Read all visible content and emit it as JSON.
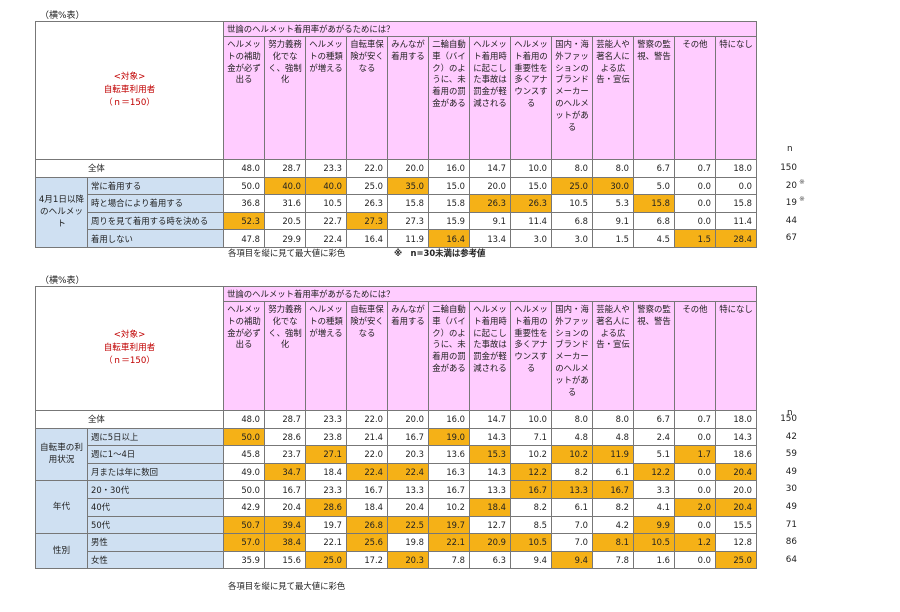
{
  "table1": {
    "unit": "（横%表）",
    "subject_label": "<対象>",
    "subject_name": "自転車利用者",
    "subject_n": "（ｎ＝150）",
    "question": "世論のヘルメット着用率があがるためには？",
    "columns": [
      "ヘルメットの補助金が必ず出る",
      "努力義務化でなく、強制化",
      "ヘルメットの種類が増える",
      "自転車保険が安くなる",
      "みんなが着用する",
      "二輪自動車（バイク）のように、未着用の罰金がある",
      "ヘルメット着用時に起こした事故は罰金が軽減される",
      "ヘルメット着用の重要性を多くアナウンスする",
      "国内・海外ファッションのブランドメーカーのヘルメットがある",
      "芸能人や著名人による広告・宣伝",
      "警察の監視、警告",
      "その他",
      "特になし"
    ],
    "n_header": "n",
    "total": {
      "label": "全体",
      "values": [
        "48.0",
        "28.7",
        "23.3",
        "22.0",
        "20.0",
        "16.0",
        "14.7",
        "10.0",
        "8.0",
        "8.0",
        "6.7",
        "0.7",
        "18.0"
      ],
      "n": "150"
    },
    "group": {
      "label": "4月1日以降のヘルメット",
      "rows": [
        {
          "label": "常に着用する",
          "values": [
            "50.0",
            "40.0",
            "40.0",
            "25.0",
            "35.0",
            "15.0",
            "20.0",
            "15.0",
            "25.0",
            "30.0",
            "5.0",
            "0.0",
            "0.0"
          ],
          "hl": [
            1,
            2,
            4,
            8,
            9
          ],
          "n": "20",
          "mark": "※"
        },
        {
          "label": "時と場合により着用する",
          "values": [
            "36.8",
            "31.6",
            "10.5",
            "26.3",
            "15.8",
            "15.8",
            "26.3",
            "26.3",
            "10.5",
            "5.3",
            "15.8",
            "0.0",
            "15.8"
          ],
          "hl": [
            6,
            7,
            10
          ],
          "n": "19",
          "mark": "※"
        },
        {
          "label": "周りを見て着用する時を決める",
          "values": [
            "52.3",
            "20.5",
            "22.7",
            "27.3",
            "27.3",
            "15.9",
            "9.1",
            "11.4",
            "6.8",
            "9.1",
            "6.8",
            "0.0",
            "11.4"
          ],
          "hl": [
            0,
            3
          ],
          "n": "44",
          "mark": ""
        },
        {
          "label": "着用しない",
          "values": [
            "47.8",
            "29.9",
            "22.4",
            "16.4",
            "11.9",
            "16.4",
            "13.4",
            "3.0",
            "3.0",
            "1.5",
            "4.5",
            "1.5",
            "28.4"
          ],
          "hl": [
            5,
            11,
            12
          ],
          "n": "67",
          "mark": ""
        }
      ]
    },
    "note1": "各項目を縦に見て最大値に彩色",
    "note2": "※　n=30未満は参考値"
  },
  "table2": {
    "unit": "（横%表）",
    "subject_label": "<対象>",
    "subject_name": "自転車利用者",
    "subject_n": "（ｎ＝150）",
    "question": "世論のヘルメット着用率があがるためには？",
    "columns": [
      "ヘルメットの補助金が必ず出る",
      "努力義務化でなく、強制化",
      "ヘルメットの種類が増える",
      "自転車保険が安くなる",
      "みんなが着用する",
      "二輪自動車（バイク）のように、未着用の罰金がある",
      "ヘルメット着用時に起こした事故は罰金が軽減される",
      "ヘルメット着用の重要性を多くアナウンスする",
      "国内・海外ファッションのブランドメーカーのヘルメットがある",
      "芸能人や著名人による広告・宣伝",
      "警察の監視、警告",
      "その他",
      "特になし"
    ],
    "n_header": "n",
    "total": {
      "label": "全体",
      "values": [
        "48.0",
        "28.7",
        "23.3",
        "22.0",
        "20.0",
        "16.0",
        "14.7",
        "10.0",
        "8.0",
        "8.0",
        "6.7",
        "0.7",
        "18.0"
      ],
      "n": "150"
    },
    "groups": [
      {
        "label": "自転車の利用状況",
        "rows": [
          {
            "label": "週に5日以上",
            "values": [
              "50.0",
              "28.6",
              "23.8",
              "21.4",
              "16.7",
              "19.0",
              "14.3",
              "7.1",
              "4.8",
              "4.8",
              "2.4",
              "0.0",
              "14.3"
            ],
            "hl": [
              0,
              5
            ],
            "n": "42"
          },
          {
            "label": "週に1～4日",
            "values": [
              "45.8",
              "23.7",
              "27.1",
              "22.0",
              "20.3",
              "13.6",
              "15.3",
              "10.2",
              "10.2",
              "11.9",
              "5.1",
              "1.7",
              "18.6"
            ],
            "hl": [
              2,
              6,
              8,
              9,
              11
            ],
            "n": "59"
          },
          {
            "label": "月または年に数回",
            "values": [
              "49.0",
              "34.7",
              "18.4",
              "22.4",
              "22.4",
              "16.3",
              "14.3",
              "12.2",
              "8.2",
              "6.1",
              "12.2",
              "0.0",
              "20.4"
            ],
            "hl": [
              1,
              3,
              4,
              7,
              10,
              12
            ],
            "n": "49"
          }
        ]
      },
      {
        "label": "年代",
        "rows": [
          {
            "label": "20・30代",
            "values": [
              "50.0",
              "16.7",
              "23.3",
              "16.7",
              "13.3",
              "16.7",
              "13.3",
              "16.7",
              "13.3",
              "16.7",
              "3.3",
              "0.0",
              "20.0"
            ],
            "hl": [
              7,
              8,
              9
            ],
            "n": "30"
          },
          {
            "label": "40代",
            "values": [
              "42.9",
              "20.4",
              "28.6",
              "18.4",
              "20.4",
              "10.2",
              "18.4",
              "8.2",
              "6.1",
              "8.2",
              "4.1",
              "2.0",
              "20.4"
            ],
            "hl": [
              2,
              6,
              11,
              12
            ],
            "n": "49"
          },
          {
            "label": "50代",
            "values": [
              "50.7",
              "39.4",
              "19.7",
              "26.8",
              "22.5",
              "19.7",
              "12.7",
              "8.5",
              "7.0",
              "4.2",
              "9.9",
              "0.0",
              "15.5"
            ],
            "hl": [
              0,
              1,
              3,
              4,
              5,
              10
            ],
            "n": "71"
          }
        ]
      },
      {
        "label": "性別",
        "rows": [
          {
            "label": "男性",
            "values": [
              "57.0",
              "38.4",
              "22.1",
              "25.6",
              "19.8",
              "22.1",
              "20.9",
              "10.5",
              "7.0",
              "8.1",
              "10.5",
              "1.2",
              "12.8"
            ],
            "hl": [
              0,
              1,
              3,
              5,
              6,
              7,
              9,
              10,
              11
            ],
            "n": "86"
          },
          {
            "label": "女性",
            "values": [
              "35.9",
              "15.6",
              "25.0",
              "17.2",
              "20.3",
              "7.8",
              "6.3",
              "9.4",
              "9.4",
              "7.8",
              "1.6",
              "0.0",
              "25.0"
            ],
            "hl": [
              2,
              4,
              8,
              12
            ],
            "n": "64"
          }
        ]
      }
    ],
    "note1": "各項目を縦に見て最大値に彩色"
  },
  "colors": {
    "header_pink": "#ffccff",
    "highlight": "#f5b117",
    "group_blue": "#cfe0f2",
    "subject_red": "#c00000"
  }
}
